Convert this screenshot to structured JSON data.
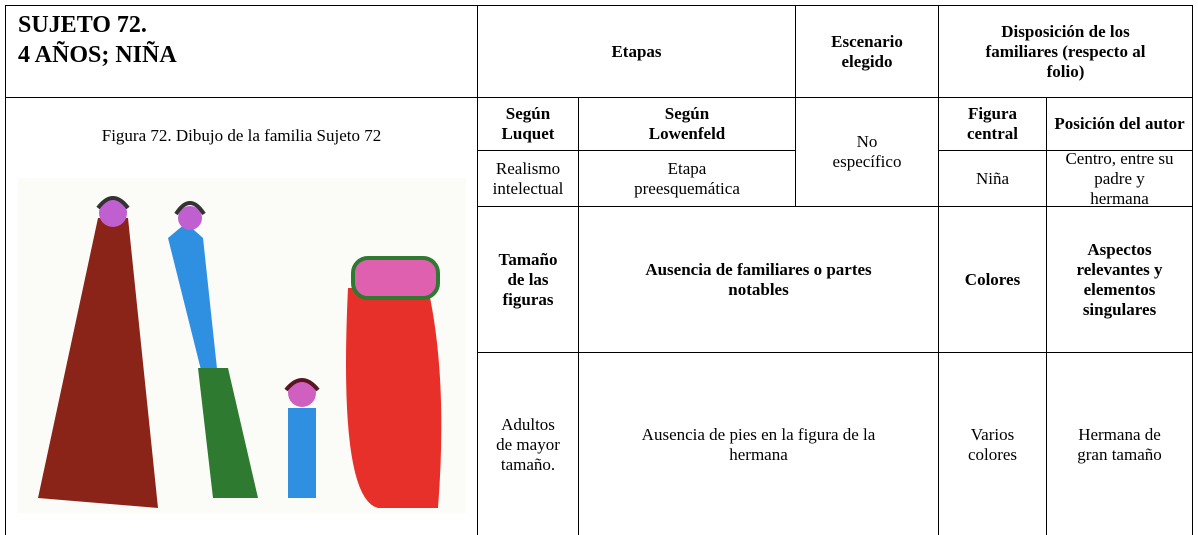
{
  "title": [
    "SUJETO 72.",
    "4 AÑOS; NIÑA"
  ],
  "figure_caption": "Figura 72. Dibujo de la familia Sujeto 72",
  "table": {
    "headers": [
      "Etapas",
      "Escenario elegido",
      "Disposición de los familiares (respecto al folio)"
    ],
    "subheaders": [
      "Según Luquet",
      "Según Lowenfeld",
      "Figura central",
      "Posición del autor"
    ],
    "row1": [
      "Realismo intelectual",
      "Etapa preesquemática",
      "No específico",
      "Niña",
      "Centro, entre su padre y hermana"
    ],
    "subheaders2": [
      "Tamaño de las figuras",
      "Ausencia de familiares o partes notables",
      "Colores",
      "Aspectos relevantes y elementos singulares"
    ],
    "row2": [
      "Adultos de mayor tamaño.",
      "Ausencia de pies en la figura de la hermana",
      "Varios colores",
      "Hermana de gran tamaño"
    ]
  }
}
